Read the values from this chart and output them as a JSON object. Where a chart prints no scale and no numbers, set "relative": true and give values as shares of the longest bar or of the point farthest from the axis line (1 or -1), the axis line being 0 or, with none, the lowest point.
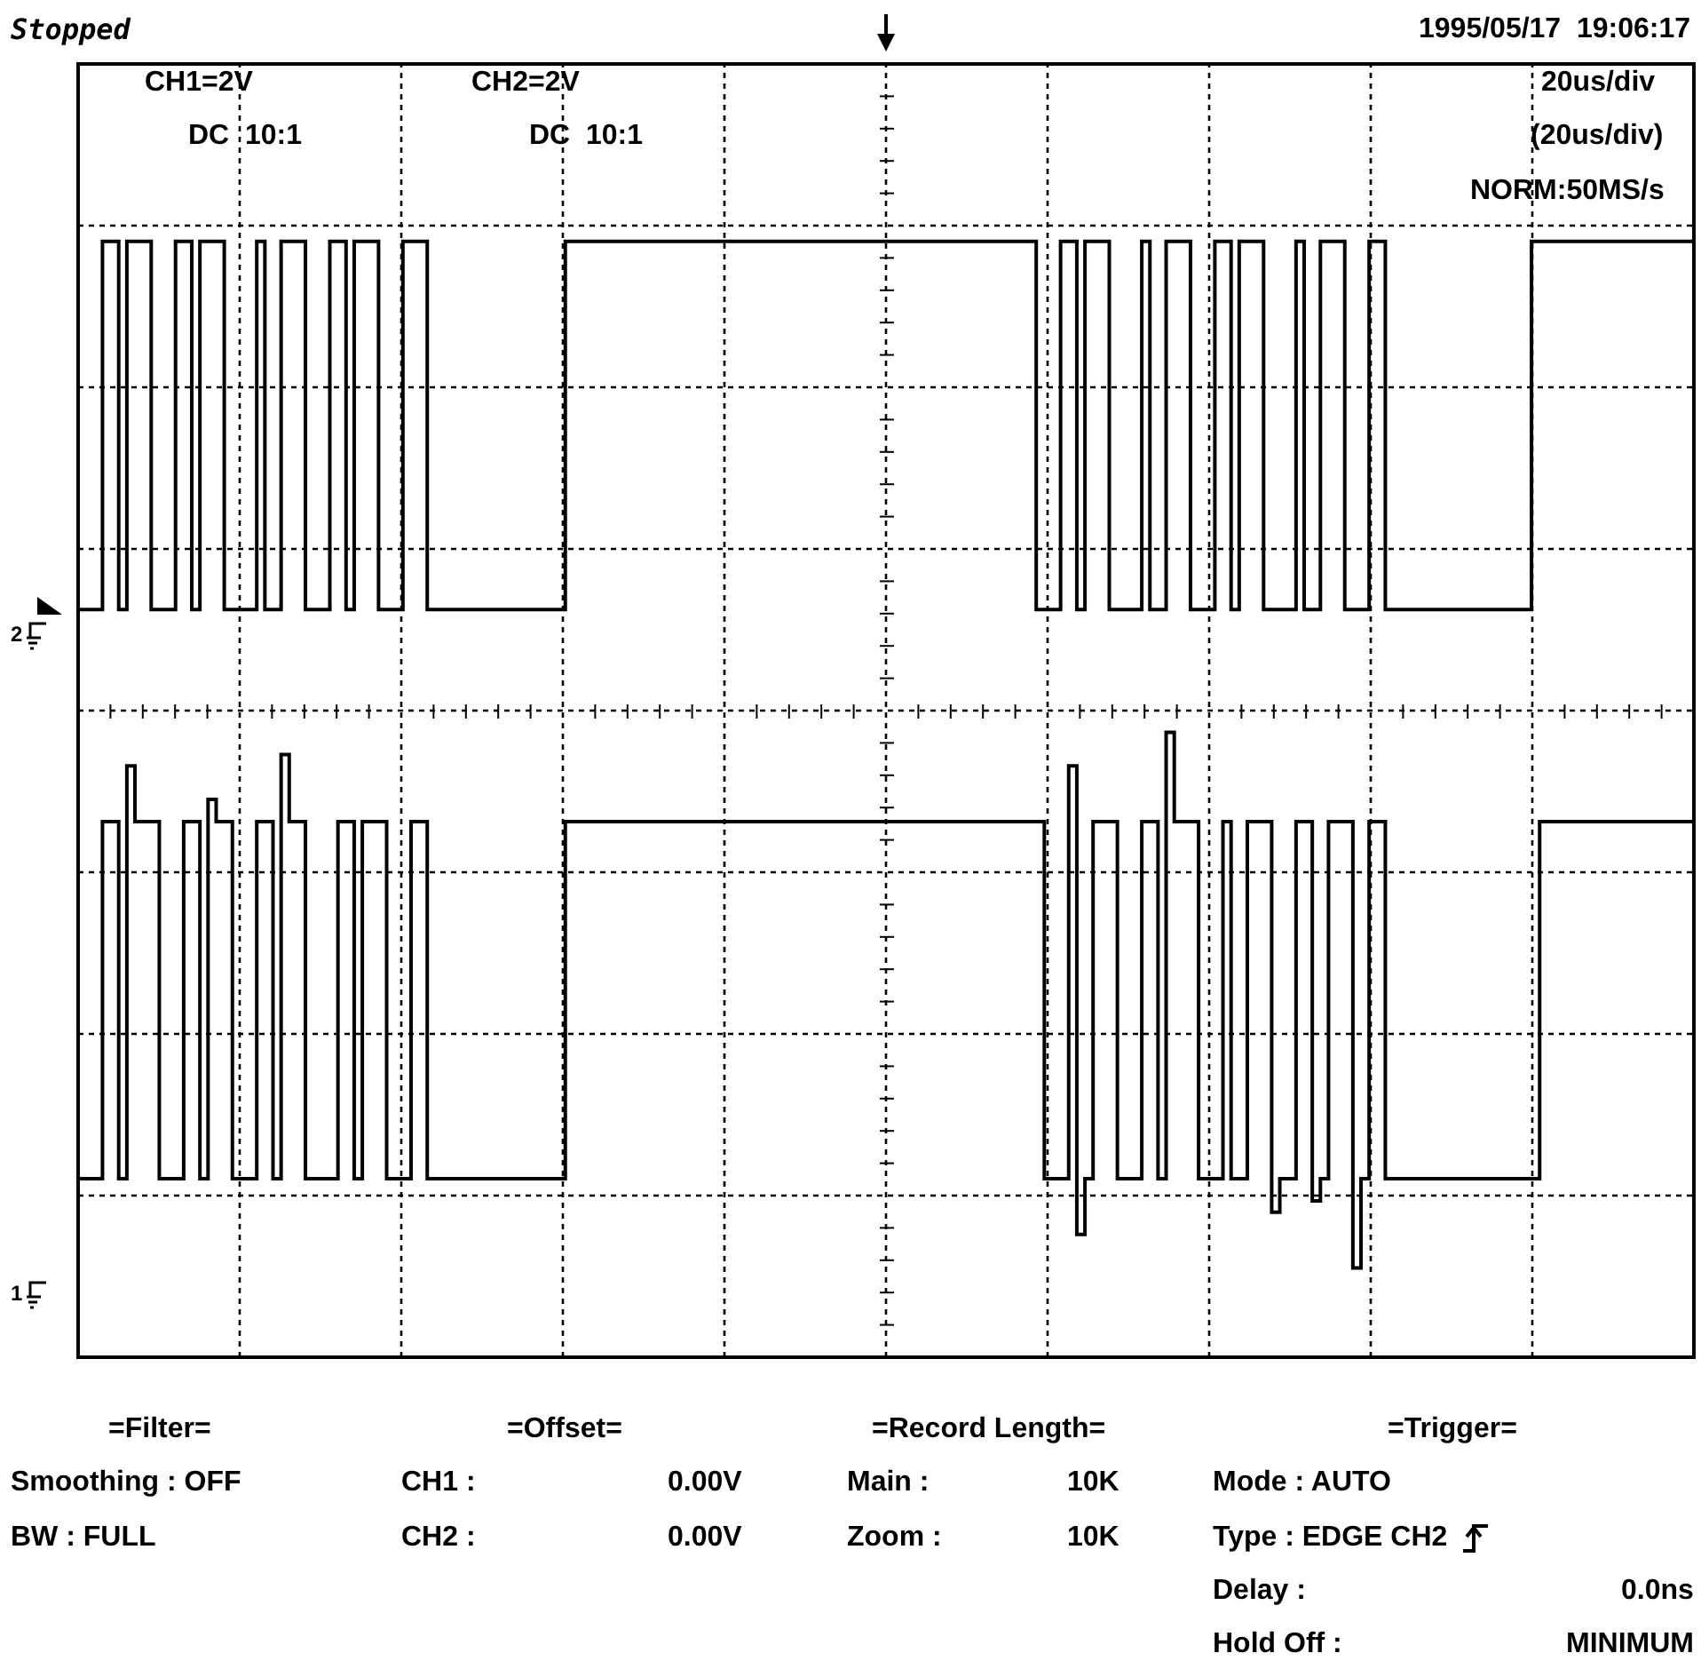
{
  "chart_data": {
    "type": "step",
    "title": "Stopped",
    "subtitle": "1995/05/17  19:06:17",
    "annotations": [
      "CH1=2V",
      "DC  10:1",
      "CH2=2V",
      "DC  10:1",
      "20us/div",
      "(20us/div)",
      "NORM:50MS/s",
      "=Filter=",
      "Smoothing : OFF",
      "BW : FULL",
      "=Offset=",
      "CH1 :",
      "0.00V",
      "CH2 :",
      "0.00V",
      "=Record Length=",
      "Main :",
      "10K",
      "Zoom :",
      "10K",
      "=Trigger=",
      "Mode : AUTO",
      "Type : EDGE CH2",
      "Delay :",
      "0.0ns",
      "Hold Off :",
      "MINIMUM"
    ],
    "categories": [
      null,
      null,
      null,
      null,
      null,
      null,
      null,
      null,
      null,
      null,
      null,
      null,
      null,
      null,
      null,
      null,
      null,
      null,
      null,
      null,
      null,
      null,
      null,
      null,
      null,
      null,
      null,
      null,
      null,
      null,
      null,
      null,
      null,
      null,
      null,
      null,
      null,
      null,
      null,
      null,
      null,
      null,
      null,
      null,
      null,
      null,
      null,
      null,
      null,
      null,
      null,
      null,
      null,
      null,
      null,
      null,
      null,
      null,
      null,
      null,
      null,
      null,
      null,
      null,
      null,
      null,
      null,
      null,
      null,
      null,
      null,
      null,
      null,
      null,
      null,
      null,
      null,
      null,
      null,
      null,
      null,
      null,
      null,
      null,
      null,
      null,
      null,
      null,
      null,
      null,
      null,
      null,
      null,
      null,
      null,
      null,
      null,
      null,
      null,
      null,
      null,
      null,
      null,
      null,
      null,
      null,
      null,
      null,
      null,
      null,
      null,
      null,
      null,
      null,
      null,
      null,
      null,
      null,
      null,
      null,
      null,
      null,
      null,
      null,
      null,
      null,
      null,
      null,
      null,
      null,
      null,
      null,
      null,
      null,
      null,
      null,
      null,
      null,
      null,
      null,
      null,
      null,
      null,
      null,
      null,
      null,
      null,
      null,
      null,
      null,
      null,
      null,
      null,
      null,
      null,
      null,
      null,
      null,
      null,
      null,
      null,
      null,
      null,
      null,
      null,
      null,
      null,
      null,
      null,
      null,
      null,
      null,
      null,
      null,
      null,
      null,
      null,
      null,
      null,
      null,
      null,
      null,
      null,
      null,
      null,
      null,
      null,
      null,
      null,
      null,
      null,
      null,
      null,
      null,
      null,
      null,
      null,
      null,
      null,
      null
    ],
    "series": [
      {
        "name": "2",
        "color": "#000000",
        "values": [
          0.67,
          0.67,
          0.67,
          1,
          1,
          0.67,
          1,
          1,
          1,
          0.67,
          0.67,
          0.67,
          1,
          1,
          0.67,
          1,
          1,
          1,
          0.67,
          0.67,
          0.67,
          0.67,
          1,
          0.67,
          0.67,
          1,
          1,
          1,
          0.67,
          0.67,
          0.67,
          1,
          1,
          0.67,
          1,
          1,
          1,
          0.67,
          0.67,
          0.67,
          1,
          1,
          1,
          0.67,
          0.67,
          0.67,
          0.67,
          0.67,
          0.67,
          0.67,
          0.67,
          0.67,
          0.67,
          0.67,
          0.67,
          0.67,
          0.67,
          0.67,
          0.67,
          0.67,
          1,
          1,
          1,
          1,
          1,
          1,
          1,
          1,
          1,
          1,
          1,
          1,
          1,
          1,
          1,
          1,
          1,
          1,
          1,
          1,
          1,
          1,
          1,
          1,
          1,
          1,
          1,
          1,
          1,
          1,
          1,
          1,
          1,
          1,
          1,
          1,
          1,
          1,
          1,
          1,
          1,
          1,
          1,
          1,
          1,
          1,
          1,
          1,
          1,
          1,
          1,
          1,
          1,
          1,
          1,
          1,
          1,
          1,
          0.67,
          0.67,
          0.67,
          1,
          1,
          0.67,
          1,
          1,
          1,
          0.67,
          0.67,
          0.67,
          0.67,
          1,
          0.67,
          0.67,
          1,
          1,
          1,
          0.67,
          0.67,
          0.67,
          1,
          1,
          0.67,
          1,
          1,
          1,
          0.67,
          0.67,
          0.67,
          0.67,
          1,
          0.67,
          0.67,
          1,
          1,
          1,
          0.67,
          0.67,
          0.67,
          1,
          1,
          0.67,
          0.67,
          0.67,
          0.67,
          0.67,
          0.67,
          0.67,
          0.67,
          0.67,
          0.67,
          0.67,
          0.67,
          0.67,
          0.67,
          0.67,
          0.67,
          0.67,
          0.67,
          1,
          1,
          1,
          1,
          1,
          1,
          1,
          1,
          1,
          1,
          1,
          1,
          1,
          1,
          1,
          1,
          1,
          1,
          1,
          1,
          1
        ]
      },
      {
        "name": "1",
        "color": "#000000",
        "values": [
          0.16,
          0.16,
          0.16,
          0.48,
          0.48,
          0.16,
          0.53,
          0.48,
          0.48,
          0.48,
          0.16,
          0.16,
          0.16,
          0.48,
          0.48,
          0.16,
          0.5,
          0.48,
          0.48,
          0.16,
          0.16,
          0.16,
          0.48,
          0.48,
          0.16,
          0.54,
          0.48,
          0.48,
          0.16,
          0.16,
          0.16,
          0.16,
          0.48,
          0.48,
          0.16,
          0.48,
          0.48,
          0.48,
          0.16,
          0.16,
          0.16,
          0.48,
          0.48,
          0.16,
          0.16,
          0.16,
          0.16,
          0.16,
          0.16,
          0.16,
          0.16,
          0.16,
          0.16,
          0.16,
          0.16,
          0.16,
          0.16,
          0.16,
          0.16,
          0.16,
          0.48,
          0.48,
          0.48,
          0.48,
          0.48,
          0.48,
          0.48,
          0.48,
          0.48,
          0.48,
          0.48,
          0.48,
          0.48,
          0.48,
          0.48,
          0.48,
          0.48,
          0.48,
          0.48,
          0.48,
          0.48,
          0.48,
          0.48,
          0.48,
          0.48,
          0.48,
          0.48,
          0.48,
          0.48,
          0.48,
          0.48,
          0.48,
          0.48,
          0.48,
          0.48,
          0.48,
          0.48,
          0.48,
          0.48,
          0.48,
          0.48,
          0.48,
          0.48,
          0.48,
          0.48,
          0.48,
          0.48,
          0.48,
          0.48,
          0.48,
          0.48,
          0.48,
          0.48,
          0.48,
          0.48,
          0.48,
          0.48,
          0.48,
          0.48,
          0.16,
          0.16,
          0.16,
          0.53,
          0.11,
          0.16,
          0.48,
          0.48,
          0.48,
          0.16,
          0.16,
          0.16,
          0.48,
          0.48,
          0.16,
          0.56,
          0.48,
          0.48,
          0.48,
          0.16,
          0.16,
          0.16,
          0.48,
          0.16,
          0.16,
          0.48,
          0.48,
          0.48,
          0.13,
          0.16,
          0.16,
          0.48,
          0.48,
          0.14,
          0.16,
          0.48,
          0.48,
          0.48,
          0.08,
          0.16,
          0.48,
          0.48,
          0.16,
          0.16,
          0.16,
          0.16,
          0.16,
          0.16,
          0.16,
          0.16,
          0.16,
          0.16,
          0.16,
          0.16,
          0.16,
          0.16,
          0.16,
          0.16,
          0.16,
          0.16,
          0.16,
          0.48,
          0.48,
          0.48,
          0.48,
          0.48,
          0.48,
          0.48,
          0.48,
          0.48,
          0.48,
          0.48,
          0.48,
          0.48,
          0.48,
          0.48,
          0.48,
          0.48,
          0.48,
          0.48,
          0.48
        ]
      }
    ],
    "relative": true,
    "grid": true,
    "legend": "left"
  }
}
